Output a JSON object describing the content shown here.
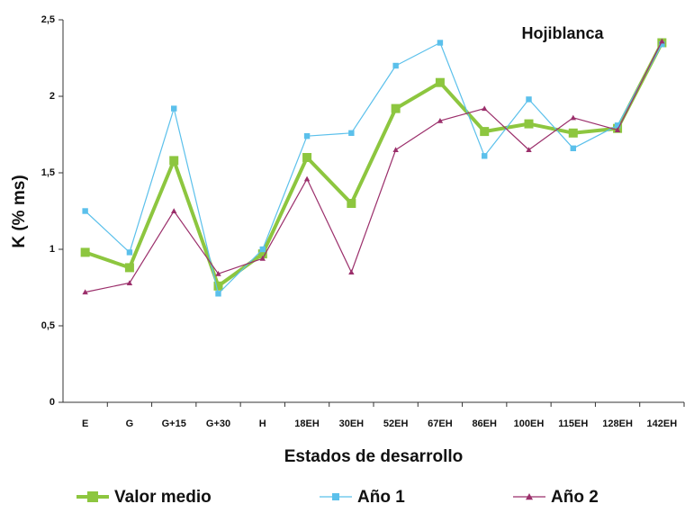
{
  "chart_data": {
    "type": "line",
    "annotation": "Hojiblanca",
    "xlabel": "Estados de desarrollo",
    "ylabel": "K (% ms)",
    "categories": [
      "E",
      "G",
      "G+15",
      "G+30",
      "H",
      "18EH",
      "30EH",
      "52EH",
      "67EH",
      "86EH",
      "100EH",
      "115EH",
      "128EH",
      "142EH"
    ],
    "series": [
      {
        "name": "Valor medio",
        "color": "#8dc63f",
        "marker": "square",
        "width": 4,
        "values": [
          0.98,
          0.88,
          1.58,
          0.76,
          0.97,
          1.6,
          1.3,
          1.92,
          2.09,
          1.77,
          1.82,
          1.76,
          1.79,
          2.35
        ]
      },
      {
        "name": "Año 1",
        "color": "#5bc0eb",
        "marker": "square",
        "width": 1.2,
        "values": [
          1.25,
          0.98,
          1.92,
          0.71,
          1.0,
          1.74,
          1.76,
          2.2,
          2.35,
          1.61,
          1.98,
          1.66,
          1.81,
          2.34
        ]
      },
      {
        "name": "Año 2",
        "color": "#9b2f6b",
        "marker": "triangle",
        "width": 1.2,
        "values": [
          0.72,
          0.78,
          1.25,
          0.84,
          0.94,
          1.46,
          0.85,
          1.65,
          1.84,
          1.92,
          1.65,
          1.86,
          1.78,
          2.36
        ]
      }
    ],
    "ylim": [
      0,
      2.5
    ],
    "yticks": [
      0,
      {
        "value": 0.5,
        "label": "0,5"
      },
      1,
      {
        "value": 1.5,
        "label": "1,5"
      },
      2,
      {
        "value": 2.5,
        "label": "2,5"
      }
    ],
    "grid": false,
    "legend": "bottom"
  }
}
